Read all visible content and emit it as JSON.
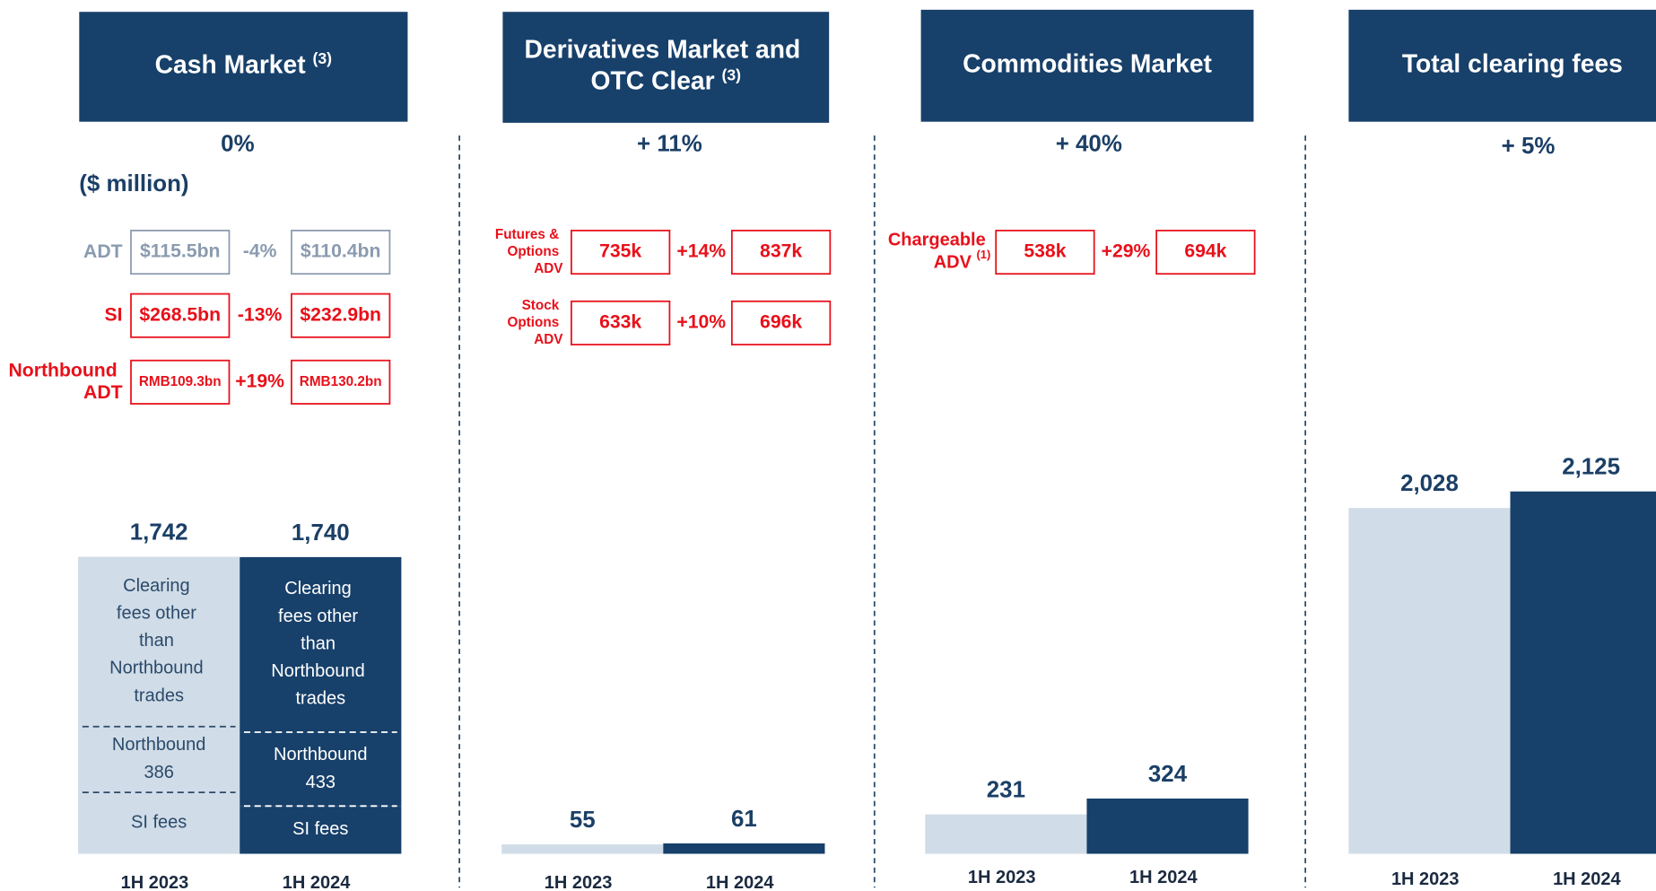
{
  "chart_data": [
    {
      "type": "bar",
      "stacked": true,
      "title": "Cash Market",
      "title_note": "(3)",
      "change": "0%",
      "unit": "($ million)",
      "metrics": [
        {
          "label": "ADT",
          "values": [
            "$115.5bn",
            "$110.4bn"
          ],
          "change": "-4%",
          "color": "#8a9bb0"
        },
        {
          "label": "SI",
          "values": [
            "$268.5bn",
            "$232.9bn"
          ],
          "change": "-13%",
          "color": "#e8101a"
        },
        {
          "label": "Northbound ADT",
          "values": [
            "RMB109.3bn",
            "RMB130.2bn"
          ],
          "change": "+19%",
          "color": "#e8101a"
        }
      ],
      "categories": [
        "1H 2023",
        "1H 2024"
      ],
      "colors": [
        "#d0dce7",
        "#17406a"
      ],
      "series": [
        {
          "name": "SI fees",
          "values": [
            360,
            280
          ]
        },
        {
          "name": "Northbound",
          "values": [
            386,
            433
          ],
          "show_values": true
        },
        {
          "name": "Clearing fees other than Northbound trades",
          "values": [
            996,
            1027
          ]
        }
      ],
      "totals": [
        1742,
        1740
      ],
      "total_labels": [
        "1,742",
        "1,740"
      ]
    },
    {
      "type": "bar",
      "title": "Derivatives Market and OTC Clear",
      "title_note": "(3)",
      "change": "+ 11%",
      "metrics": [
        {
          "label": "Futures & Options ADV",
          "values": [
            "735k",
            "837k"
          ],
          "change": "+14%",
          "color": "#e8101a"
        },
        {
          "label": "Stock Options ADV",
          "values": [
            "633k",
            "696k"
          ],
          "change": "+10%",
          "color": "#e8101a"
        }
      ],
      "categories": [
        "1H 2023",
        "1H 2024"
      ],
      "colors": [
        "#d0dce7",
        "#17406a"
      ],
      "values": [
        55,
        61
      ]
    },
    {
      "type": "bar",
      "title": "Commodities Market",
      "change": "+ 40%",
      "metrics": [
        {
          "label": "Chargeable ADV",
          "note": "(1)",
          "values": [
            "538k",
            "694k"
          ],
          "change": "+29%",
          "color": "#e8101a"
        }
      ],
      "categories": [
        "1H 2023",
        "1H 2024"
      ],
      "colors": [
        "#d0dce7",
        "#17406a"
      ],
      "values": [
        231,
        324
      ]
    },
    {
      "type": "bar",
      "title": "Total clearing fees",
      "change": "+ 5%",
      "categories": [
        "1H 2023",
        "1H 2024"
      ],
      "colors": [
        "#d0dce7",
        "#17406a"
      ],
      "values": [
        2028,
        2125
      ],
      "value_labels": [
        "2,028",
        "2,125"
      ]
    }
  ]
}
